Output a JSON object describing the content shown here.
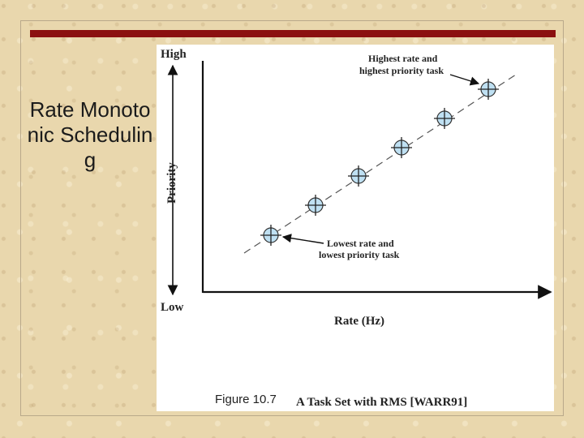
{
  "slide": {
    "title": "Rate Monotonic Schedulin g",
    "figure_number": "Figure 10.7"
  },
  "diagram": {
    "priority_high": "High",
    "priority_low": "Low",
    "priority_axis": "Priority",
    "rate_axis": "Rate (Hz)",
    "top_annotation_line1": "Highest rate and",
    "top_annotation_line2": "highest priority task",
    "bottom_annotation_line1": "Lowest rate and",
    "bottom_annotation_line2": "lowest priority task",
    "caption": "A Task Set with RMS [WARR91]"
  },
  "colors": {
    "accent_bar": "#8b1010",
    "marker_fill": "#bfe0f2"
  }
}
